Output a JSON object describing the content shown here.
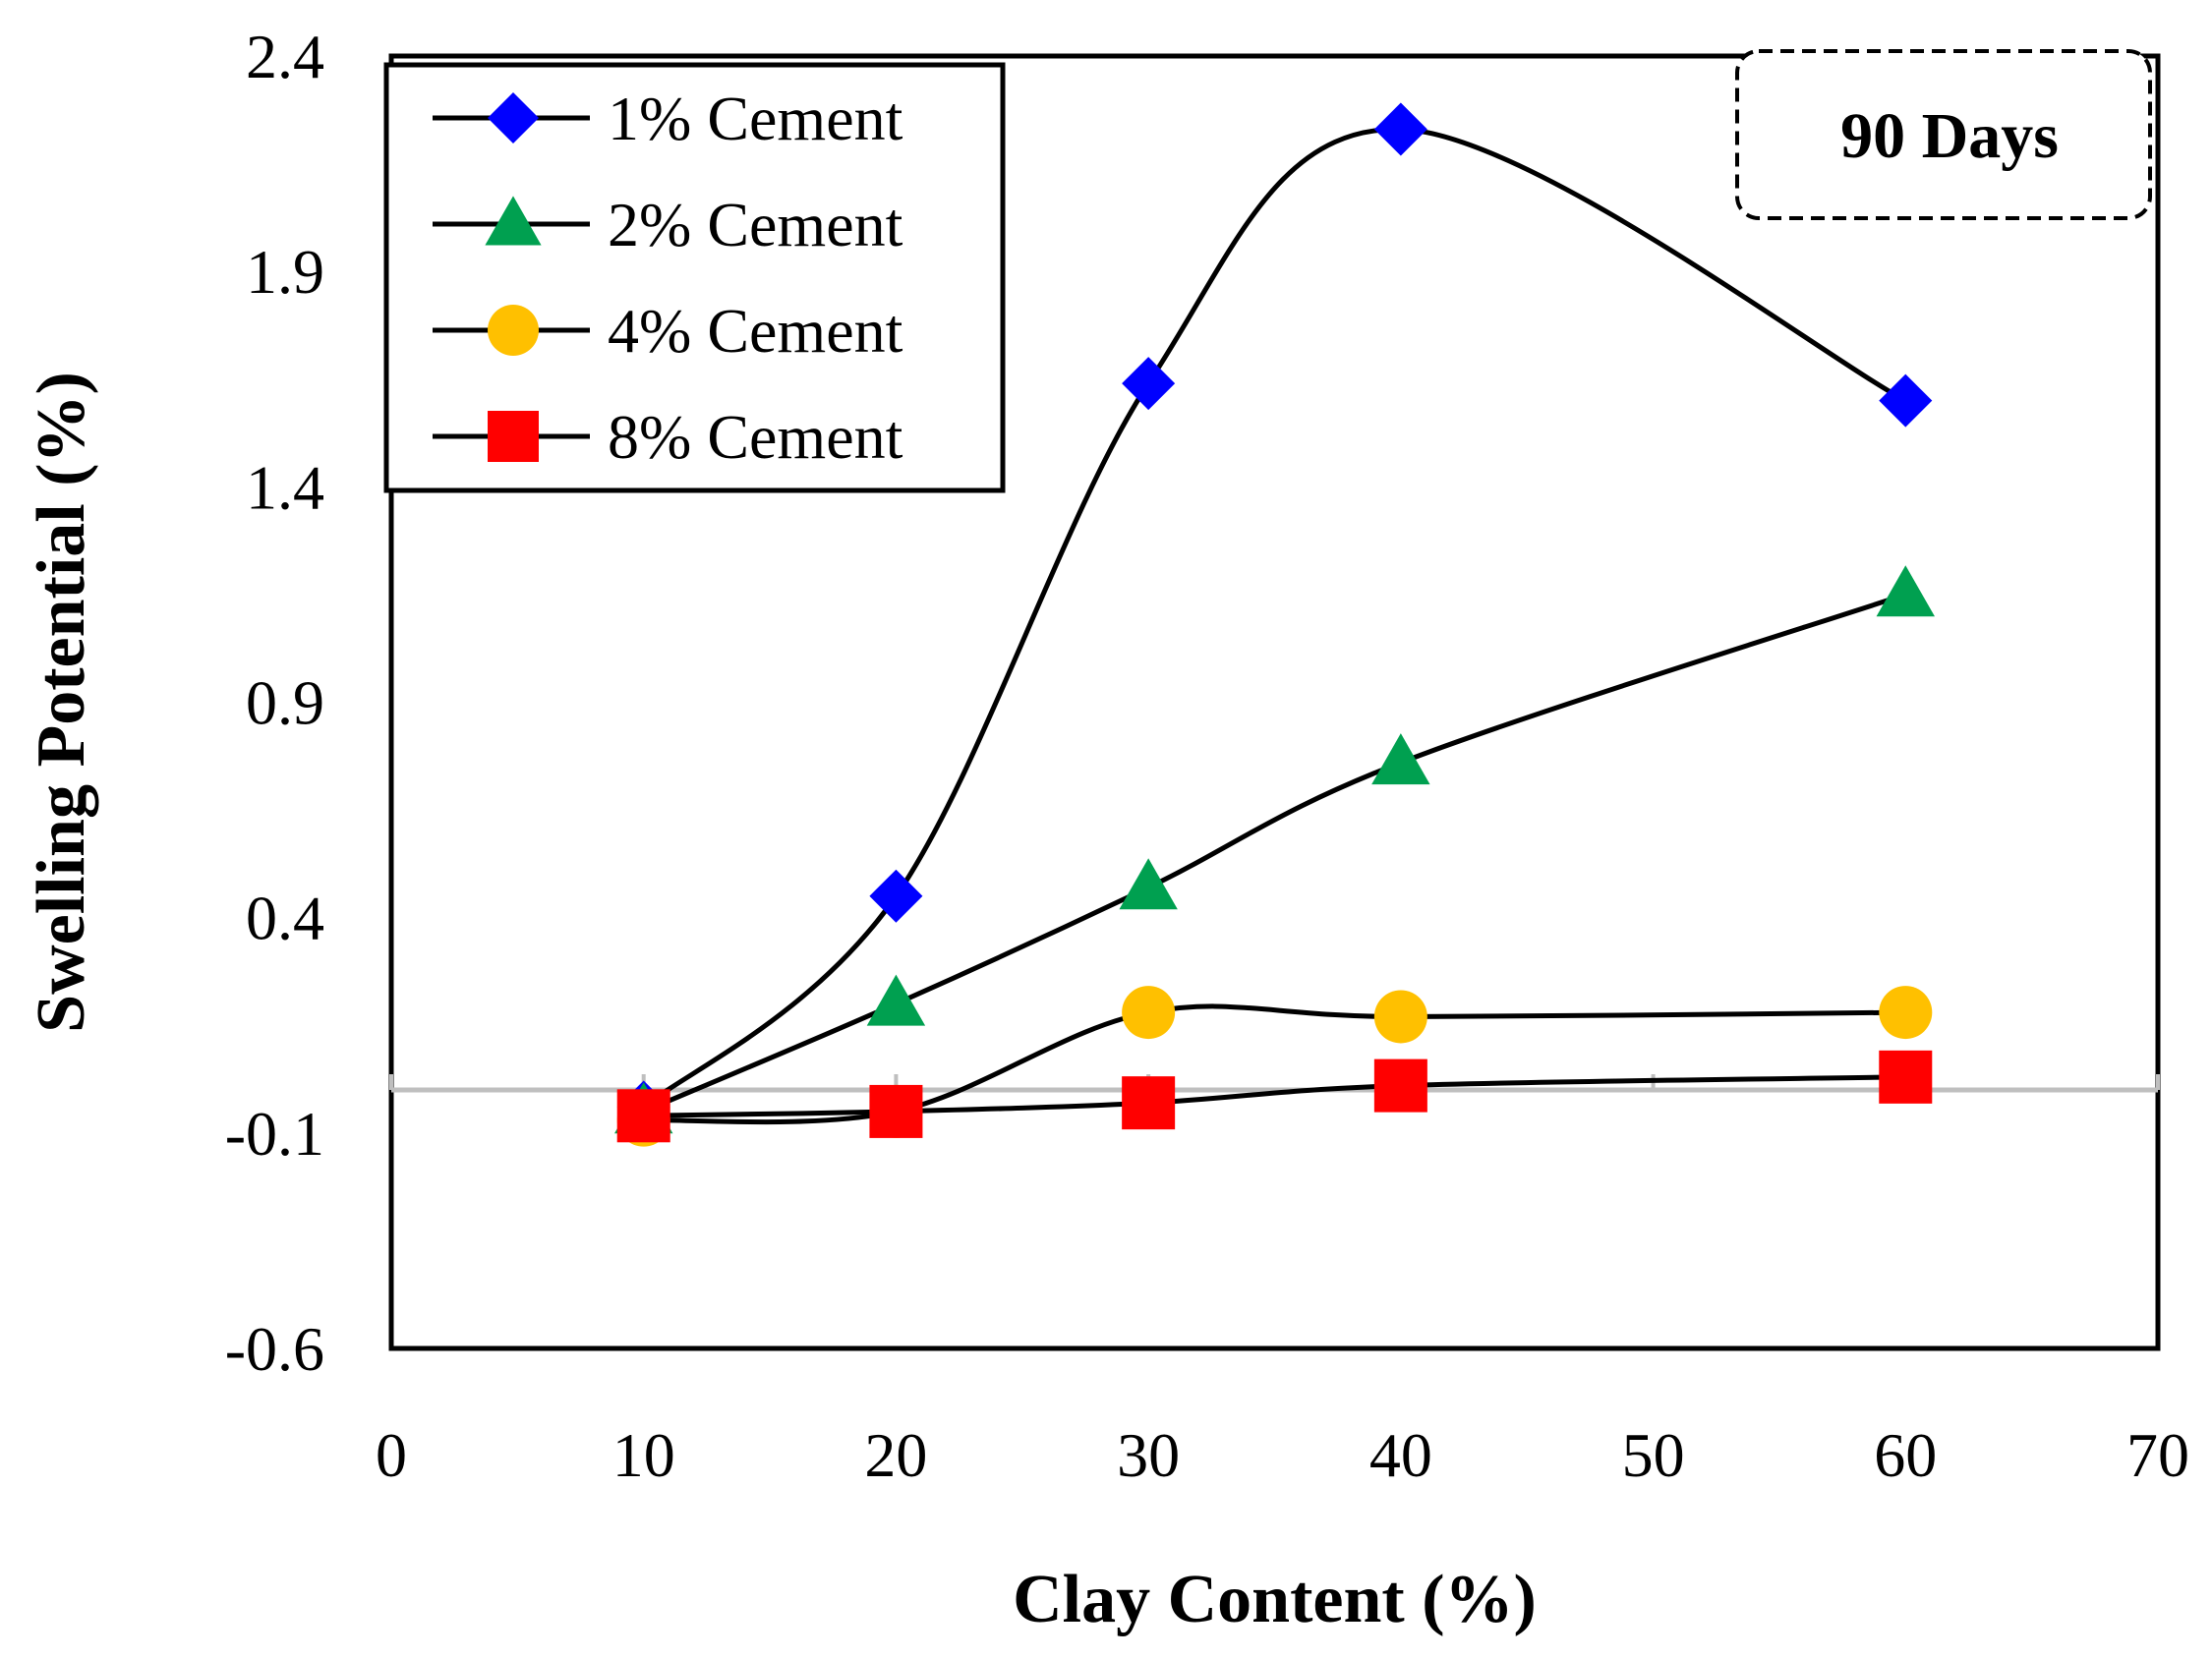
{
  "chart_data": {
    "type": "line",
    "title": "",
    "xlabel": "Clay Content (%)",
    "ylabel": "Swelling Potential  (%)",
    "xlim": [
      0,
      70
    ],
    "ylim": [
      -0.6,
      2.4
    ],
    "xticks": [
      0,
      10,
      20,
      30,
      40,
      50,
      60,
      70
    ],
    "yticks": [
      -0.6,
      -0.1,
      0.4,
      0.9,
      1.4,
      1.9,
      2.4
    ],
    "xtick_labels": [
      "0",
      "10",
      "20",
      "30",
      "40",
      "50",
      "60",
      "70"
    ],
    "ytick_labels": [
      "-0.6",
      "-0.1",
      "0.4",
      "0.9",
      "1.4",
      "1.9",
      "2.4"
    ],
    "grid": false,
    "legend_position": "top-left",
    "annotation": "90 Days",
    "x": [
      10,
      20,
      30,
      40,
      60
    ],
    "series": [
      {
        "name": "1% Cement",
        "marker": "diamond",
        "color": "#0000FF",
        "values": [
          -0.04,
          0.45,
          1.64,
          2.23,
          1.6
        ]
      },
      {
        "name": "2% Cement",
        "marker": "triangle",
        "color": "#00A050",
        "values": [
          -0.05,
          0.2,
          0.47,
          0.76,
          1.15
        ]
      },
      {
        "name": "4% Cement",
        "marker": "circle",
        "color": "#FFC000",
        "values": [
          -0.07,
          -0.05,
          0.18,
          0.17,
          0.18
        ]
      },
      {
        "name": "8% Cement",
        "marker": "square",
        "color": "#FF0000",
        "values": [
          -0.06,
          -0.05,
          -0.03,
          0.01,
          0.03
        ]
      }
    ]
  }
}
